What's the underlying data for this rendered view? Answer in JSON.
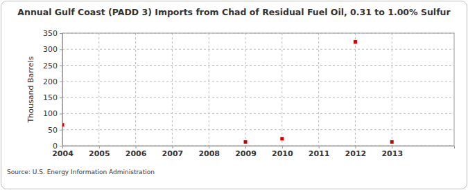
{
  "chart_data": {
    "type": "scatter",
    "title": "Annual Gulf Coast (PADD 3) Imports from Chad of Residual Fuel Oil, 0.31 to 1.00% Sulfur",
    "y_label": "Thousand Barrels",
    "source": "Source: U.S. Energy Information Administration",
    "x": [
      2004,
      2009,
      2010,
      2012,
      2013
    ],
    "values": [
      65,
      12,
      22,
      323,
      12
    ],
    "color": "#cc0000",
    "marker": "square",
    "xlim": [
      2004,
      2014.7
    ],
    "xticks": [
      2004,
      2005,
      2006,
      2007,
      2008,
      2009,
      2010,
      2011,
      2012,
      2013
    ],
    "ylim": [
      0,
      350
    ],
    "yticks": [
      0,
      50,
      100,
      150,
      200,
      250,
      300,
      350
    ],
    "grid": true
  }
}
